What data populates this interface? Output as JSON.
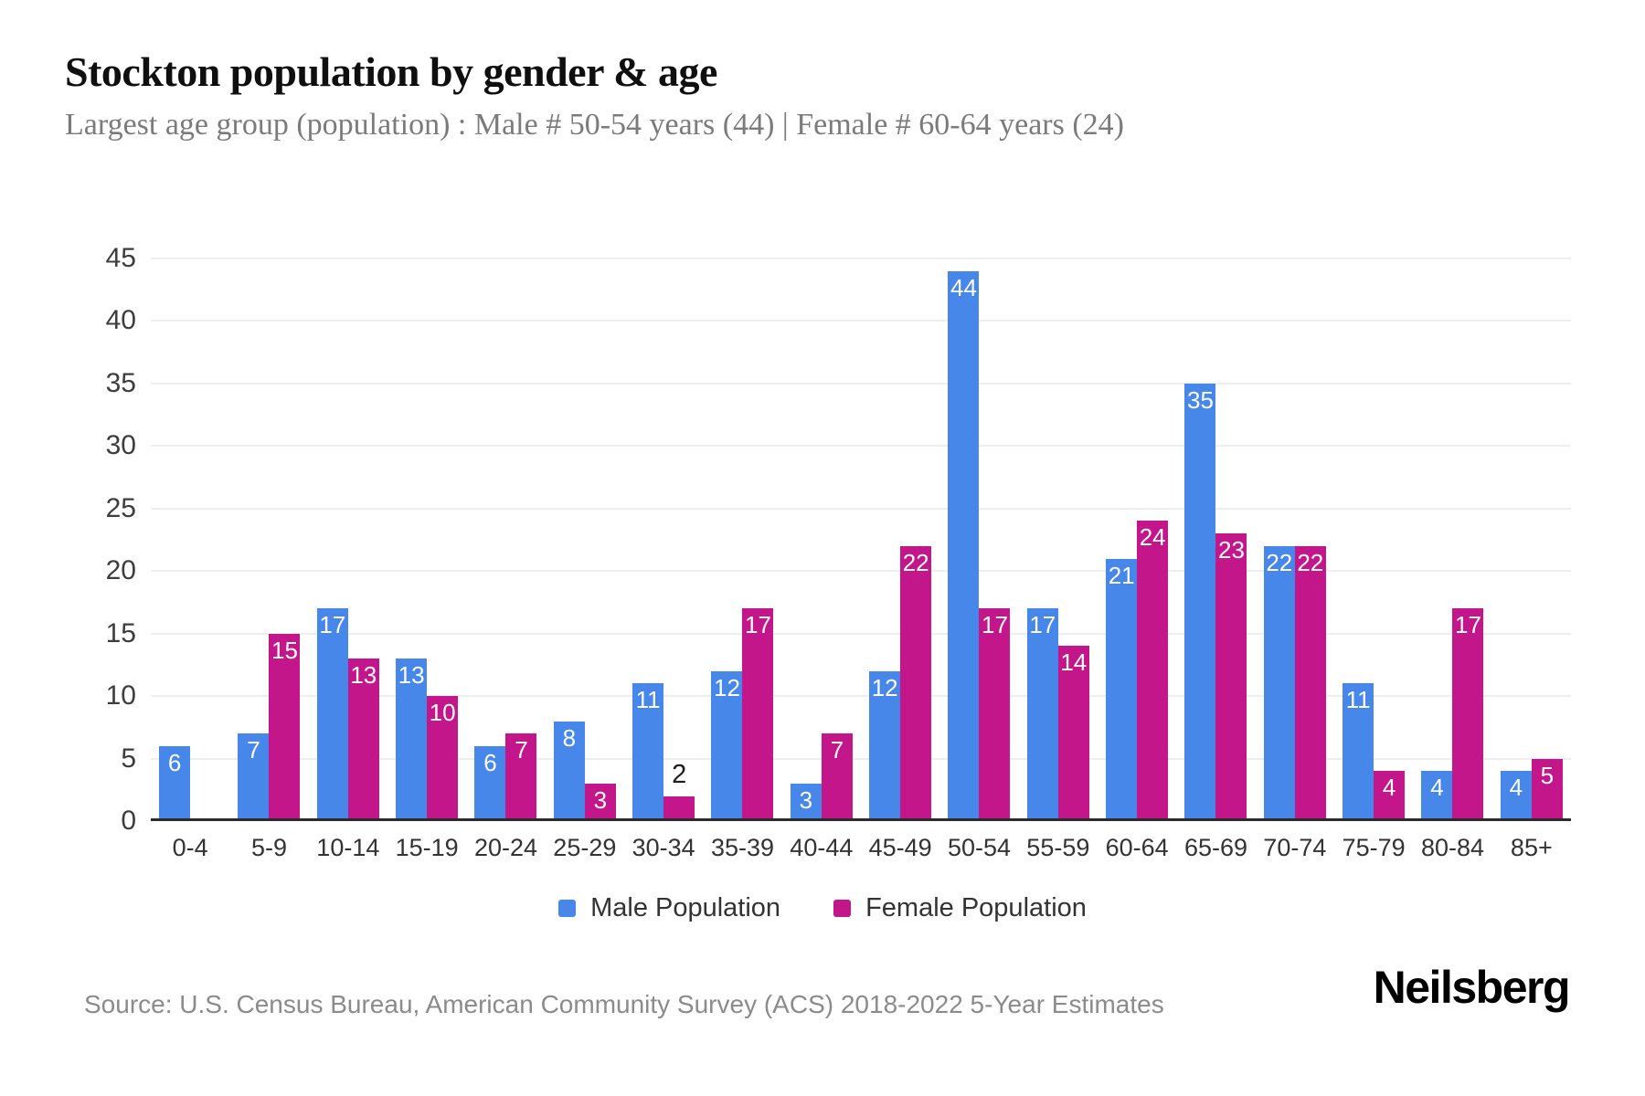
{
  "header": {
    "title": "Stockton population by gender & age",
    "subtitle": "Largest age group (population) : Male # 50-54 years (44) | Female # 60-64 years (24)"
  },
  "chart_data": {
    "type": "bar",
    "title": "Stockton population by gender & age",
    "categories": [
      "0-4",
      "5-9",
      "10-14",
      "15-19",
      "20-24",
      "25-29",
      "30-34",
      "35-39",
      "40-44",
      "45-49",
      "50-54",
      "55-59",
      "60-64",
      "65-69",
      "70-74",
      "75-79",
      "80-84",
      "85+"
    ],
    "series": [
      {
        "name": "Male Population",
        "color": "#4787e9",
        "values": [
          6,
          7,
          17,
          13,
          6,
          8,
          11,
          12,
          3,
          12,
          44,
          17,
          21,
          35,
          22,
          11,
          4,
          4
        ]
      },
      {
        "name": "Female Population",
        "color": "#c2168a",
        "values": [
          0,
          15,
          13,
          10,
          7,
          3,
          2,
          17,
          7,
          22,
          17,
          14,
          24,
          23,
          22,
          4,
          17,
          5
        ]
      }
    ],
    "xlabel": "",
    "ylabel": "",
    "ylim": [
      0,
      45
    ],
    "y_ticks": [
      0,
      5,
      10,
      15,
      20,
      25,
      30,
      35,
      40,
      45
    ],
    "grid": true,
    "legend_position": "bottom",
    "value_label_style": "white inside bar top; dark above bar when value < 3; omitted when value is 0"
  },
  "legend": {
    "items": [
      {
        "label": "Male Population",
        "color": "#4787e9"
      },
      {
        "label": "Female Population",
        "color": "#c2168a"
      }
    ]
  },
  "footer": {
    "source": "Source: U.S. Census Bureau, American Community Survey (ACS) 2018-2022 5-Year Estimates",
    "brand": "Neilsberg"
  }
}
